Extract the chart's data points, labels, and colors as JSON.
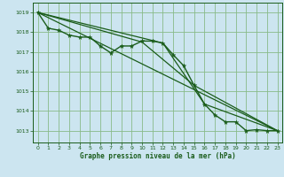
{
  "title": "Graphe pression niveau de la mer (hPa)",
  "background_color": "#cce5f0",
  "grid_color": "#88bb88",
  "line_color": "#1a5c1a",
  "marker_color": "#1a5c1a",
  "xlim": [
    -0.5,
    23.5
  ],
  "ylim": [
    1012.4,
    1019.5
  ],
  "yticks": [
    1013,
    1014,
    1015,
    1016,
    1017,
    1018,
    1019
  ],
  "xticks": [
    0,
    1,
    2,
    3,
    4,
    5,
    6,
    7,
    8,
    9,
    10,
    11,
    12,
    13,
    14,
    15,
    16,
    17,
    18,
    19,
    20,
    21,
    22,
    23
  ],
  "main_series": {
    "x": [
      0,
      1,
      2,
      3,
      4,
      5,
      6,
      7,
      8,
      9,
      10,
      11,
      12,
      13,
      14,
      15,
      16,
      17,
      18,
      19,
      20,
      21,
      22,
      23
    ],
    "y": [
      1019.0,
      1018.2,
      1018.1,
      1017.85,
      1017.75,
      1017.75,
      1017.3,
      1016.95,
      1017.3,
      1017.3,
      1017.55,
      1017.55,
      1017.45,
      1016.85,
      1016.3,
      1015.3,
      1014.35,
      1013.8,
      1013.45,
      1013.45,
      1013.0,
      1013.05,
      1013.0,
      1013.0
    ]
  },
  "trend_lines": [
    {
      "x": [
        0,
        23
      ],
      "y": [
        1019.0,
        1013.0
      ]
    },
    {
      "x": [
        0,
        10,
        15,
        23
      ],
      "y": [
        1019.0,
        1017.5,
        1015.3,
        1013.0
      ]
    },
    {
      "x": [
        0,
        12,
        16,
        23
      ],
      "y": [
        1019.0,
        1017.45,
        1014.35,
        1013.0
      ]
    }
  ]
}
